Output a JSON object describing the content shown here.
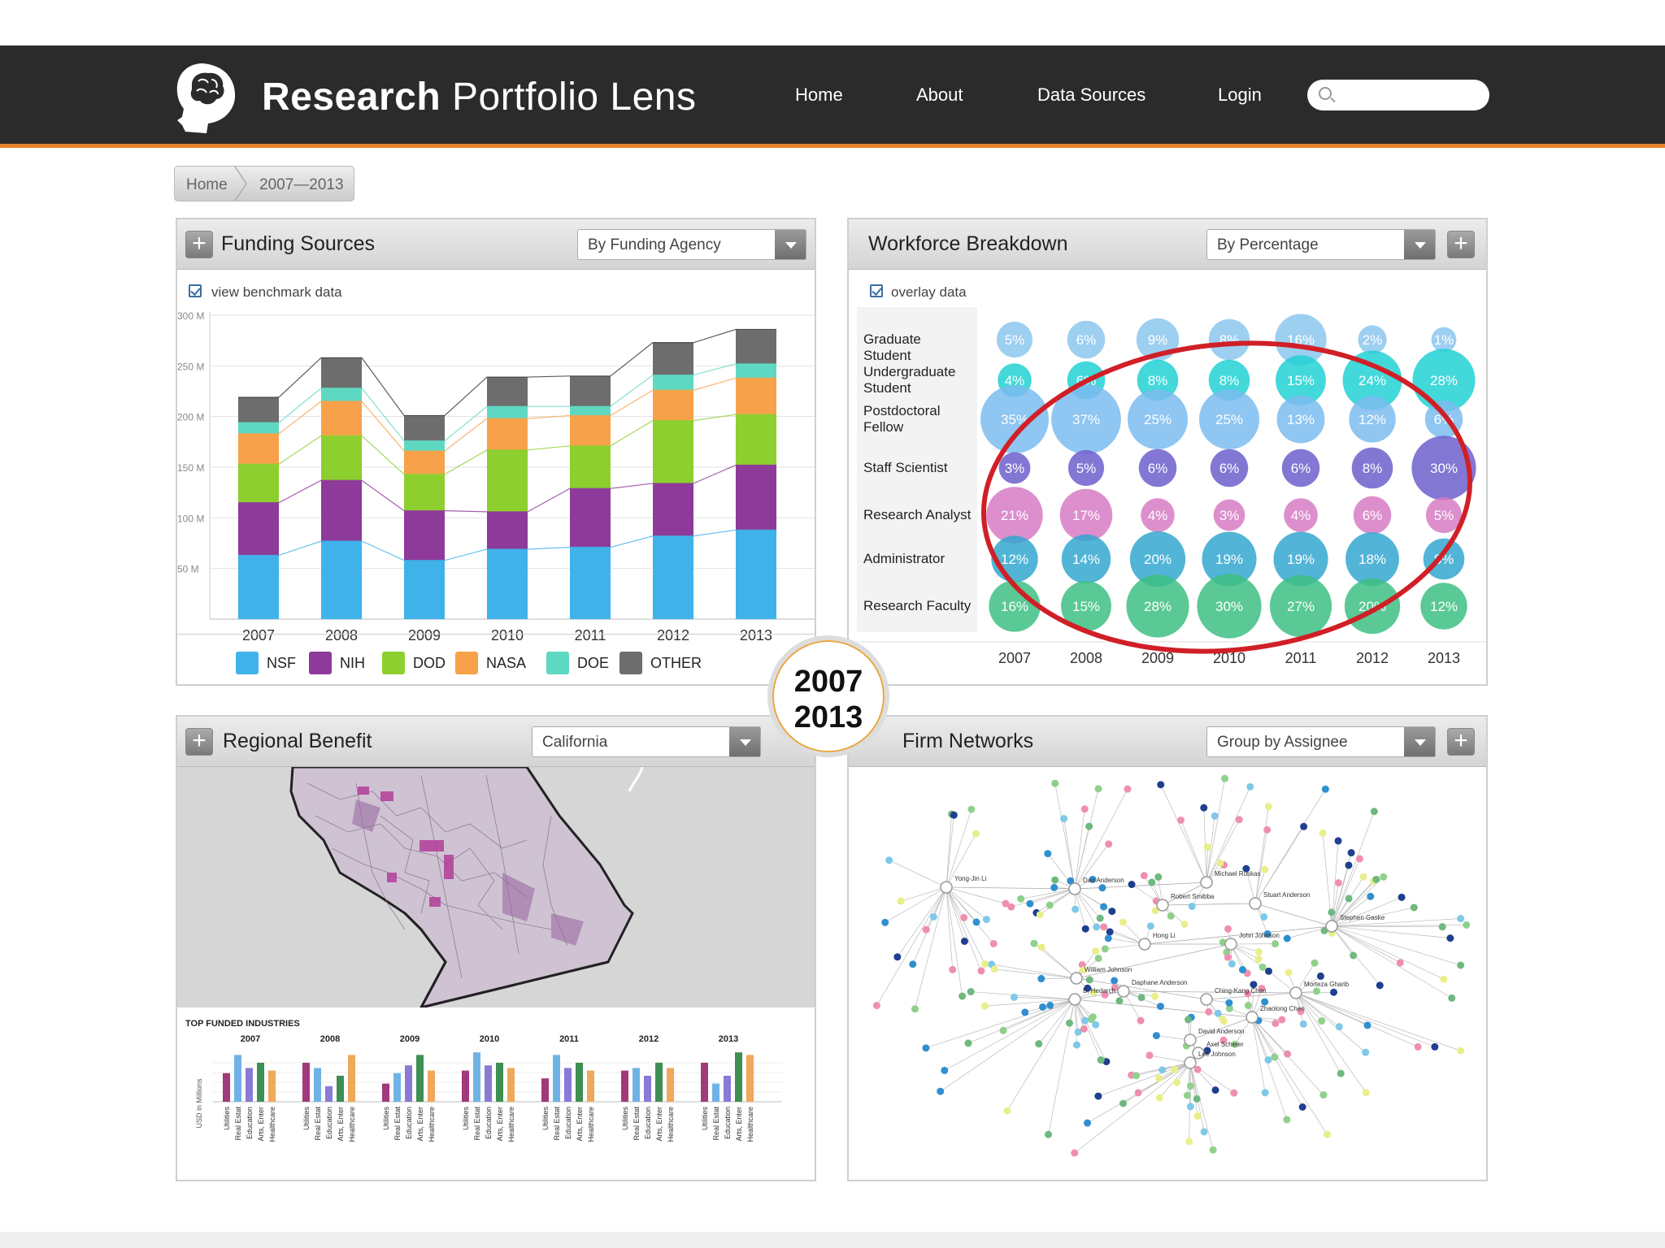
{
  "app": {
    "brand_bold": "Research",
    "brand_rest": "Portfolio Lens"
  },
  "nav": {
    "items": [
      "Home",
      "About",
      "Data Sources",
      "Login"
    ],
    "search_placeholder": ""
  },
  "breadcrumb": [
    "Home",
    "2007—2013"
  ],
  "year_badge": {
    "start": "2007",
    "end": "2013"
  },
  "funding": {
    "title": "Funding Sources",
    "select": "By Funding Agency",
    "checkbox": "view benchmark data",
    "chart_data": {
      "type": "bar",
      "stacked": true,
      "categories": [
        "2007",
        "2008",
        "2009",
        "2010",
        "2011",
        "2012",
        "2013"
      ],
      "y_ticks": [
        "300 M",
        "250 M",
        "200 M",
        "150 M",
        "100 M",
        "50 M"
      ],
      "ylim": [
        0,
        300
      ],
      "series": [
        {
          "name": "NSF",
          "color": "#3fb2ea",
          "values": [
            63,
            77,
            58,
            69,
            71,
            82,
            88
          ]
        },
        {
          "name": "NIH",
          "color": "#8e3a9a",
          "values": [
            52,
            60,
            49,
            37,
            58,
            52,
            64
          ]
        },
        {
          "name": "DOD",
          "color": "#8ccf2f",
          "values": [
            38,
            44,
            36,
            61,
            42,
            62,
            50
          ]
        },
        {
          "name": "NASA",
          "color": "#f7a24a",
          "values": [
            30,
            34,
            23,
            31,
            30,
            30,
            36
          ]
        },
        {
          "name": "DOE",
          "color": "#5fd8c2",
          "values": [
            11,
            13,
            10,
            12,
            9,
            15,
            14
          ]
        },
        {
          "name": "OTHER",
          "color": "#6d6d6d",
          "values": [
            25,
            30,
            25,
            29,
            30,
            32,
            34
          ]
        }
      ]
    }
  },
  "workforce": {
    "title": "Workforce Breakdown",
    "select": "By Percentage",
    "checkbox": "overlay data",
    "chart_data": {
      "type": "scatter",
      "x": [
        "2007",
        "2008",
        "2009",
        "2010",
        "2011",
        "2012",
        "2013"
      ],
      "rows": [
        {
          "label": "Graduate Student",
          "color": "#8cc7ee",
          "values": [
            5,
            6,
            9,
            8,
            16,
            2,
            1
          ]
        },
        {
          "label": "Undergraduate Student",
          "color": "#22d1d3",
          "values": [
            4,
            6,
            8,
            8,
            15,
            24,
            28
          ]
        },
        {
          "label": "Postdoctoral Fellow",
          "color": "#7bbcf0",
          "values": [
            35,
            37,
            25,
            25,
            13,
            12,
            6
          ]
        },
        {
          "label": "Staff Scientist",
          "color": "#6d5fcc",
          "values": [
            3,
            5,
            6,
            6,
            6,
            8,
            30
          ]
        },
        {
          "label": "Research Analyst",
          "color": "#d77bc4",
          "values": [
            21,
            17,
            4,
            3,
            4,
            6,
            5
          ]
        },
        {
          "label": "Administrator",
          "color": "#34a7cf",
          "values": [
            12,
            14,
            20,
            19,
            19,
            18,
            8
          ]
        },
        {
          "label": "Research Faculty",
          "color": "#3dbf82",
          "values": [
            16,
            15,
            28,
            30,
            27,
            20,
            12
          ]
        }
      ]
    }
  },
  "regional": {
    "title": "Regional Benefit",
    "select": "California",
    "industries_title": "TOP FUNDED INDUSTRIES",
    "y_axis_label": "USD in Millions",
    "industries": [
      "Utilities",
      "Real Estat",
      "Education",
      "Arts, Enter",
      "Healthcare"
    ],
    "chart_data": {
      "type": "bar",
      "categories": [
        "2007",
        "2008",
        "2009",
        "2010",
        "2011",
        "2012",
        "2013"
      ],
      "series": [
        {
          "name": "Utilities",
          "color": "#a13a7a",
          "values": [
            22,
            30,
            14,
            24,
            18,
            24,
            30
          ]
        },
        {
          "name": "Real Estat",
          "color": "#6fb3e6",
          "values": [
            36,
            26,
            22,
            38,
            36,
            26,
            14
          ]
        },
        {
          "name": "Education",
          "color": "#8a7ad6",
          "values": [
            26,
            12,
            28,
            28,
            26,
            20,
            20
          ]
        },
        {
          "name": "Arts, Enter",
          "color": "#3e8f53",
          "values": [
            30,
            20,
            36,
            30,
            30,
            30,
            38
          ]
        },
        {
          "name": "Healthcare",
          "color": "#f0a85a",
          "values": [
            24,
            36,
            24,
            26,
            24,
            26,
            36
          ]
        }
      ]
    }
  },
  "networks": {
    "title": "Firm Networks",
    "select": "Group by Assignee",
    "node_labels": [
      "Yong-Jin Li",
      "Dan Anderson",
      "Michael Ruskas",
      "Robert Smibba",
      "Stuart Anderson",
      "Stephen Gaske",
      "Hong Li",
      "John Johnson",
      "William Johnson",
      "Ching-Kang Chen",
      "Morteza Gharib",
      "Daphane Anderson",
      "B. Hedarch",
      "Zhaolong Chen",
      "David Anderson",
      "Axel Scherer",
      "Lee Johnson"
    ]
  }
}
